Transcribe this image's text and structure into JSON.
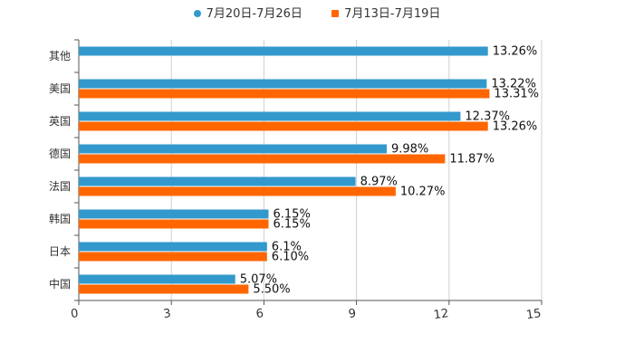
{
  "chart_data": {
    "type": "bar",
    "orientation": "horizontal",
    "categories": [
      "其他",
      "美国",
      "英国",
      "德国",
      "法国",
      "韩国",
      "日本",
      "中国"
    ],
    "series": [
      {
        "name": "7月20日-7月26日",
        "color": "#3399CC",
        "values": [
          13.26,
          13.22,
          12.37,
          9.98,
          8.97,
          6.15,
          6.1,
          5.07
        ],
        "labels": [
          "13.26%",
          "13.22%",
          "12.37%",
          "9.98%",
          "8.97%",
          "6.15%",
          "6.1%",
          "5.07%"
        ]
      },
      {
        "name": "7月13日-7月19日",
        "color": "#FF6600",
        "values": [
          null,
          13.31,
          13.26,
          11.87,
          10.27,
          6.15,
          6.1,
          5.5
        ],
        "labels": [
          "",
          "13.31%",
          "13.26%",
          "11.87%",
          "10.27%",
          "6.15%",
          "6.10%",
          "5.50%"
        ]
      }
    ],
    "xlim": [
      0,
      15
    ],
    "xticks": [
      "0",
      "3",
      "6",
      "9",
      "12",
      "15"
    ],
    "xtick_values": [
      0,
      3,
      6,
      9,
      12,
      15
    ],
    "grid": true,
    "legend_position": "top-center",
    "title": "",
    "xlabel": "",
    "ylabel": ""
  }
}
